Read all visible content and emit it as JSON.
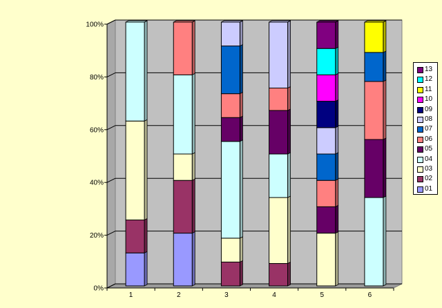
{
  "chart_data": {
    "type": "bar",
    "stacked": "percent",
    "categories": [
      "1",
      "2",
      "3",
      "4",
      "5",
      "6"
    ],
    "ylim": [
      0,
      100
    ],
    "yticks": [
      "0%",
      "20%",
      "40%",
      "60%",
      "80%",
      "100%"
    ],
    "grid": true,
    "legend_position": "right",
    "series": [
      {
        "name": "01",
        "color": "#9999ff",
        "values": [
          12.5,
          20,
          0,
          0,
          0,
          0
        ]
      },
      {
        "name": "02",
        "color": "#993366",
        "values": [
          12.5,
          20,
          9,
          8.5,
          0,
          0
        ]
      },
      {
        "name": "03",
        "color": "#ffffcc",
        "values": [
          37.5,
          10,
          9,
          25,
          20,
          0
        ]
      },
      {
        "name": "04",
        "color": "#ccffff",
        "values": [
          37.5,
          30,
          36.5,
          16.5,
          0,
          33.5
        ]
      },
      {
        "name": "05",
        "color": "#660066",
        "values": [
          0,
          0,
          9,
          16.5,
          10,
          22
        ]
      },
      {
        "name": "06",
        "color": "#ff8080",
        "values": [
          0,
          20,
          9,
          8.5,
          10,
          22
        ]
      },
      {
        "name": "07",
        "color": "#0066cc",
        "values": [
          0,
          0,
          18,
          0,
          10,
          11
        ]
      },
      {
        "name": "08",
        "color": "#ccccff",
        "values": [
          0,
          0,
          9,
          25,
          10,
          0
        ]
      },
      {
        "name": "09",
        "color": "#000080",
        "values": [
          0,
          0,
          0,
          0,
          10,
          0
        ]
      },
      {
        "name": "10",
        "color": "#ff00ff",
        "values": [
          0,
          0,
          0,
          0,
          10,
          0
        ]
      },
      {
        "name": "11",
        "color": "#ffff00",
        "values": [
          0,
          0,
          0,
          0,
          0,
          11.5
        ]
      },
      {
        "name": "12",
        "color": "#00ffff",
        "values": [
          0,
          0,
          0,
          0,
          10,
          0
        ]
      },
      {
        "name": "13",
        "color": "#800080",
        "values": [
          0,
          0,
          0,
          0,
          10,
          0
        ]
      }
    ]
  }
}
